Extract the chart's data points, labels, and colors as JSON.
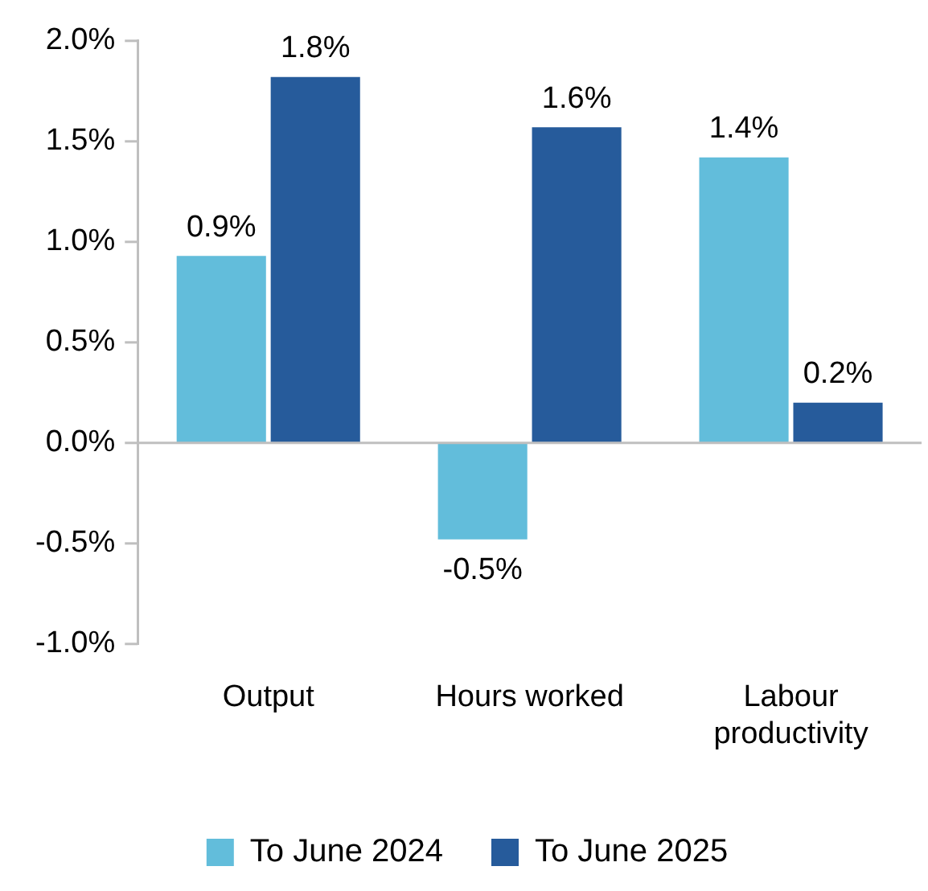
{
  "chart_data": {
    "type": "bar",
    "categories": [
      "Output",
      "Hours worked",
      "Labour productivity"
    ],
    "series": [
      {
        "name": "To June 2024",
        "color": "#62bddb",
        "values": [
          0.93,
          -0.48,
          1.42
        ],
        "value_labels": [
          "0.9%",
          "-0.5%",
          "1.4%"
        ]
      },
      {
        "name": "To June 2025",
        "color": "#265b9b",
        "values": [
          1.82,
          1.57,
          0.2
        ],
        "value_labels": [
          "1.8%",
          "1.6%",
          "0.2%"
        ]
      }
    ],
    "ylim": [
      -1,
      2
    ],
    "yticks": [
      {
        "value": -1,
        "label": "-1.0%"
      },
      {
        "value": -0.5,
        "label": "-0.5%"
      },
      {
        "value": 0,
        "label": "0.0%"
      },
      {
        "value": 0.5,
        "label": "0.5%"
      },
      {
        "value": 1,
        "label": "1.0%"
      },
      {
        "value": 1.5,
        "label": "1.5%"
      },
      {
        "value": 2,
        "label": "2.0%"
      }
    ],
    "ref_lines": [
      {
        "axis": "y",
        "value": 0,
        "color": "#bfbfbf"
      }
    ],
    "grid": false,
    "legend": "bottom"
  }
}
